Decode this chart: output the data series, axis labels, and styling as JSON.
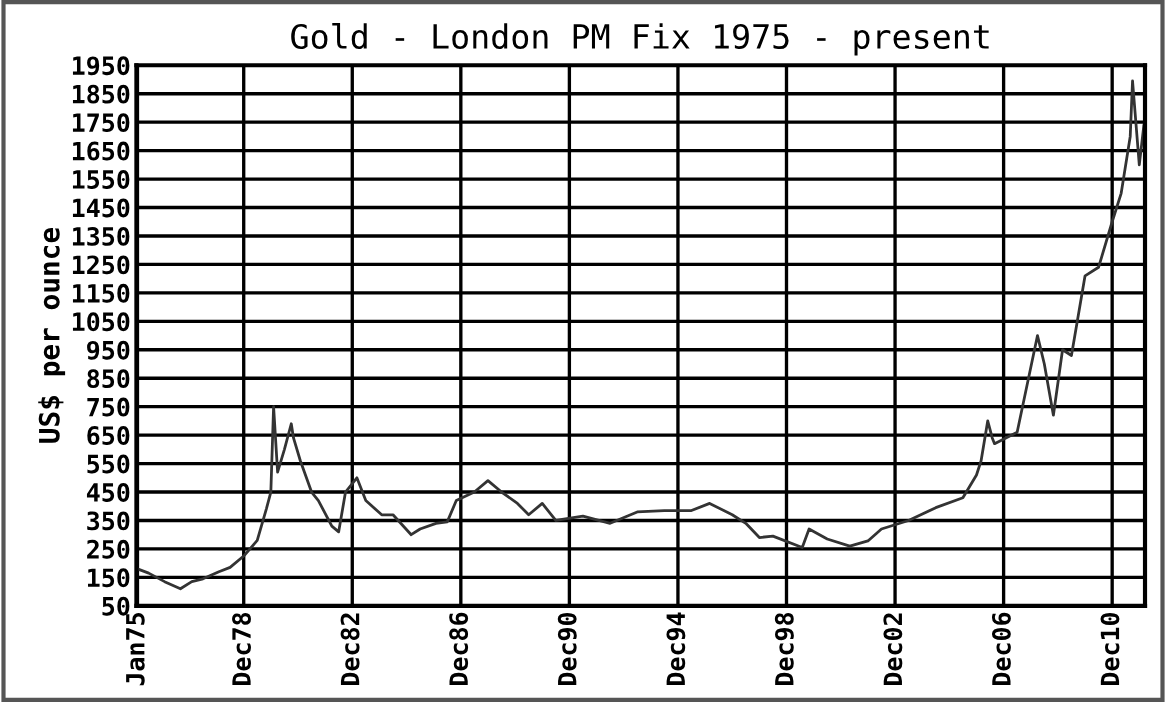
{
  "chart_data": {
    "type": "line",
    "title": "Gold - London PM Fix 1975 - present",
    "ylabel": "US$ per ounce",
    "x": [
      "1975-01",
      "1975-06",
      "1976-01",
      "1976-08",
      "1977-01",
      "1977-06",
      "1978-01",
      "1978-06",
      "1978-12",
      "1979-06",
      "1979-10",
      "1979-12",
      "1980-01-21",
      "1980-03",
      "1980-06",
      "1980-09",
      "1980-10",
      "1981-01",
      "1981-06",
      "1981-09",
      "1982-03",
      "1982-06",
      "1982-09",
      "1983-02",
      "1983-06",
      "1984-01",
      "1984-06",
      "1985-02",
      "1985-06",
      "1986-01",
      "1986-06",
      "1986-10",
      "1987-06",
      "1987-12",
      "1988-06",
      "1989-01",
      "1989-06",
      "1989-12",
      "1990-06",
      "1991-06",
      "1992-06",
      "1993-06",
      "1994-06",
      "1995-06",
      "1996-02",
      "1996-12",
      "1997-06",
      "1997-12",
      "1998-06",
      "1999-07",
      "1999-10",
      "2000-06",
      "2001-04",
      "2001-12",
      "2002-06",
      "2003-06",
      "2004-06",
      "2005-06",
      "2005-12",
      "2006-02",
      "2006-05",
      "2006-07",
      "2006-08",
      "2007-01",
      "2007-06",
      "2008-03",
      "2008-06",
      "2008-10",
      "2009-02",
      "2009-06",
      "2009-12",
      "2010-06",
      "2010-12",
      "2011-04",
      "2011-08",
      "2011-09",
      "2011-12",
      "2012-02"
    ],
    "series": [
      {
        "color": "#333333",
        "values": [
          180,
          165,
          135,
          110,
          135,
          145,
          170,
          185,
          225,
          280,
          390,
          450,
          750,
          520,
          600,
          690,
          640,
          560,
          450,
          420,
          330,
          310,
          450,
          500,
          420,
          370,
          370,
          300,
          320,
          340,
          345,
          420,
          450,
          490,
          450,
          410,
          370,
          410,
          350,
          365,
          340,
          380,
          385,
          385,
          410,
          370,
          340,
          290,
          295,
          255,
          320,
          285,
          260,
          278,
          320,
          350,
          395,
          430,
          510,
          560,
          700,
          640,
          620,
          640,
          660,
          1000,
          900,
          720,
          950,
          930,
          1210,
          1240,
          1400,
          1500,
          1700,
          1895,
          1600,
          1740
        ]
      }
    ],
    "xlim": [
      "1975-01-01",
      "2012-03-01"
    ],
    "xticks": [
      {
        "value": "1975-01",
        "label": "Jan75"
      },
      {
        "value": "1978-12",
        "label": "Dec78"
      },
      {
        "value": "1982-12",
        "label": "Dec82"
      },
      {
        "value": "1986-12",
        "label": "Dec86"
      },
      {
        "value": "1990-12",
        "label": "Dec90"
      },
      {
        "value": "1994-12",
        "label": "Dec94"
      },
      {
        "value": "1998-12",
        "label": "Dec98"
      },
      {
        "value": "2002-12",
        "label": "Dec02"
      },
      {
        "value": "2006-12",
        "label": "Dec06"
      },
      {
        "value": "2010-12",
        "label": "Dec10"
      }
    ],
    "ylim": [
      50,
      1950
    ],
    "yticks": [
      50,
      150,
      250,
      350,
      450,
      550,
      650,
      750,
      850,
      950,
      1050,
      1150,
      1250,
      1350,
      1450,
      1550,
      1650,
      1750,
      1850,
      1950
    ],
    "grid": true,
    "legend": false,
    "marker": "none",
    "line_style": "solid"
  }
}
